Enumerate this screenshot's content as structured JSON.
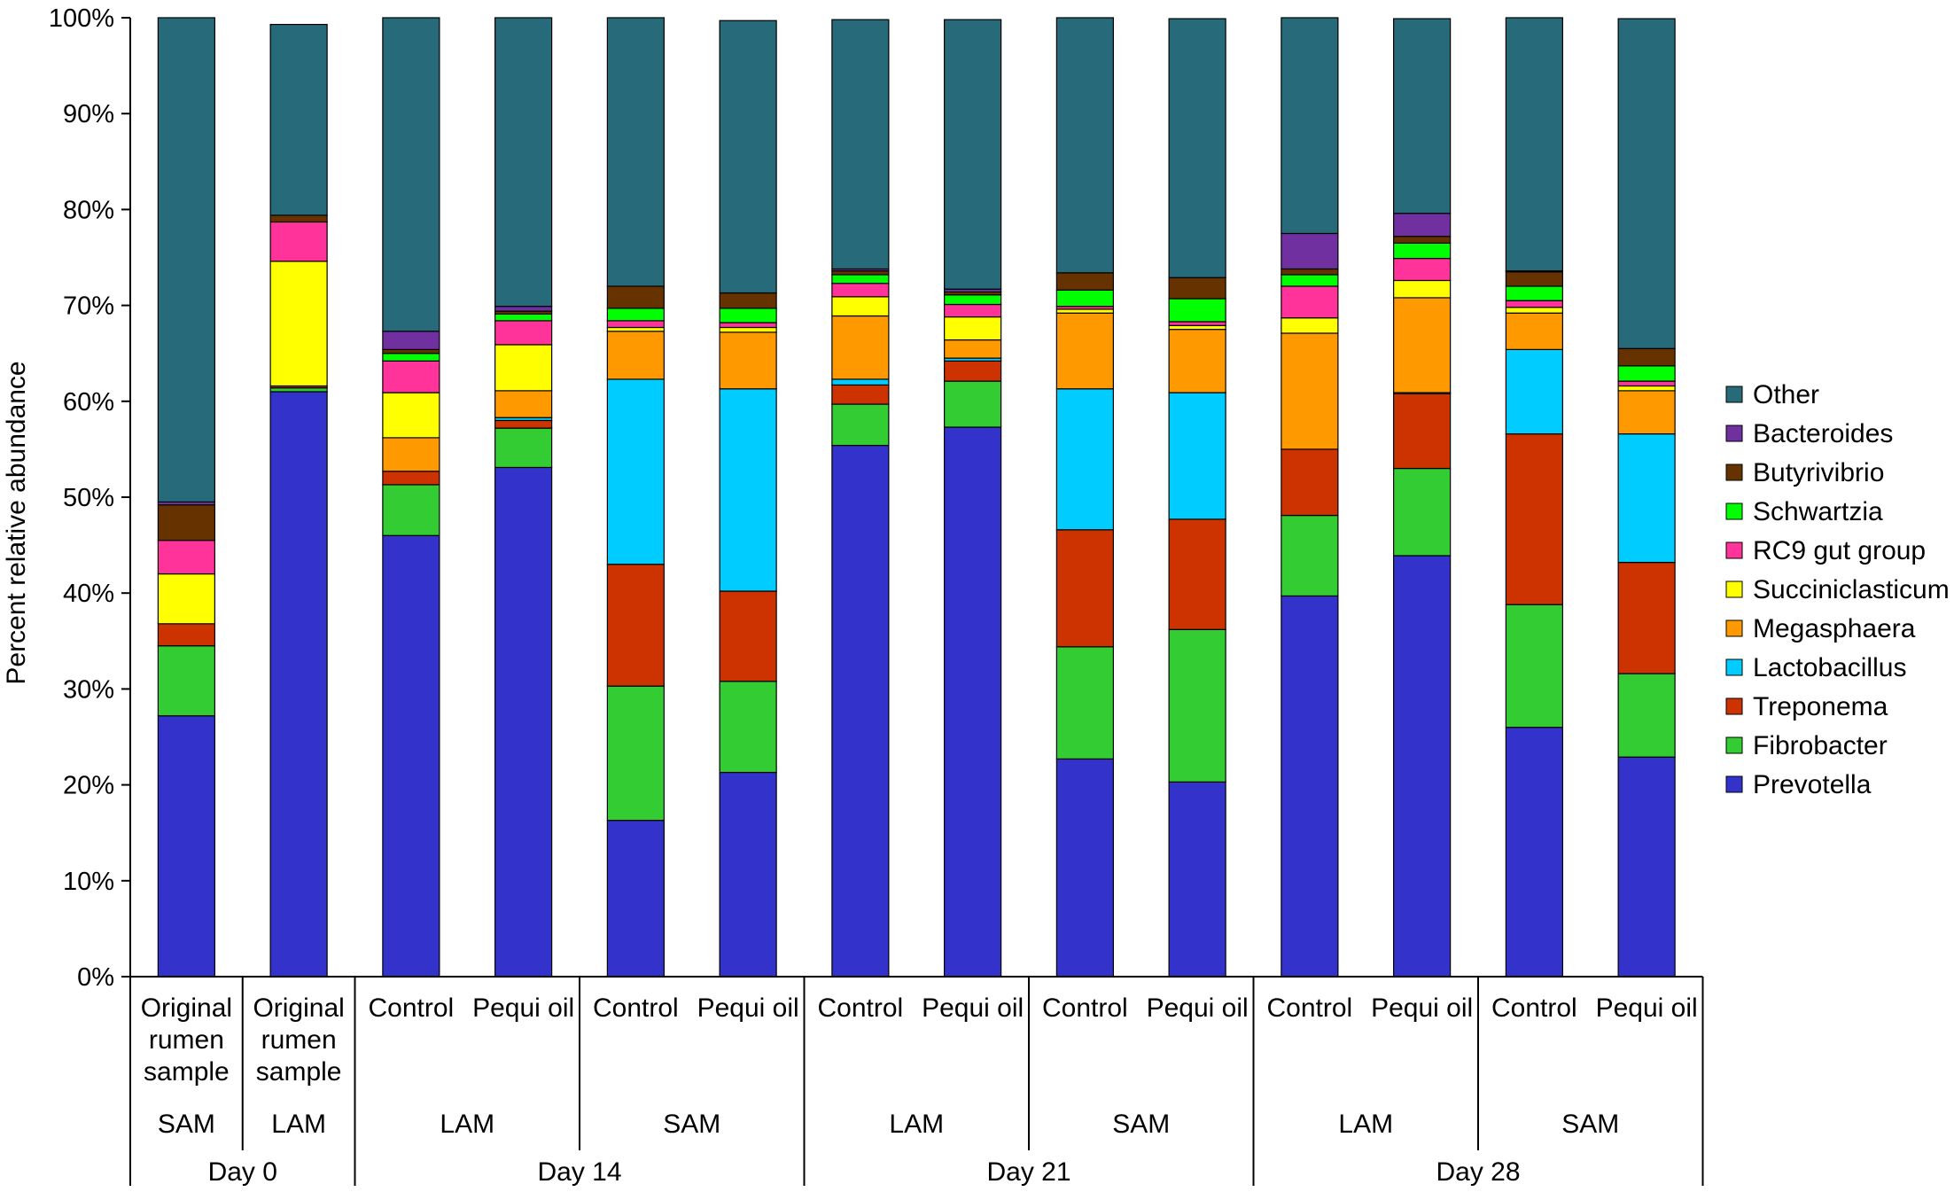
{
  "chart_data": {
    "type": "bar",
    "stacked": true,
    "ylabel": "Percent relative abundance",
    "ylim": [
      0,
      100
    ],
    "yticks": [
      "0%",
      "10%",
      "20%",
      "30%",
      "40%",
      "50%",
      "60%",
      "70%",
      "80%",
      "90%",
      "100%"
    ],
    "legend_position": "right",
    "categories": [
      "Original rumen sample",
      "Original rumen sample",
      "Control",
      "Pequi oil",
      "Control",
      "Pequi oil",
      "Control",
      "Pequi oil",
      "Control",
      "Pequi oil",
      "Control",
      "Pequi oil",
      "Control",
      "Pequi oil"
    ],
    "category_lines": [
      [
        "Original",
        "rumen",
        "sample"
      ],
      [
        "Original",
        "rumen",
        "sample"
      ],
      [
        "Control"
      ],
      [
        "Pequi oil"
      ],
      [
        "Control"
      ],
      [
        "Pequi oil"
      ],
      [
        "Control"
      ],
      [
        "Pequi oil"
      ],
      [
        "Control"
      ],
      [
        "Pequi oil"
      ],
      [
        "Control"
      ],
      [
        "Pequi oil"
      ],
      [
        "Control"
      ],
      [
        "Pequi oil"
      ]
    ],
    "group_level1": [
      {
        "label": "SAM",
        "span": 1
      },
      {
        "label": "LAM",
        "span": 1
      },
      {
        "label": "LAM",
        "span": 2
      },
      {
        "label": "SAM",
        "span": 2
      },
      {
        "label": "LAM",
        "span": 2
      },
      {
        "label": "SAM",
        "span": 2
      },
      {
        "label": "LAM",
        "span": 2
      },
      {
        "label": "SAM",
        "span": 2
      }
    ],
    "group_level2": [
      {
        "label": "Day 0",
        "span": 2
      },
      {
        "label": "Day 14",
        "span": 4
      },
      {
        "label": "Day 21",
        "span": 4
      },
      {
        "label": "Day 28",
        "span": 4
      }
    ],
    "series": [
      {
        "name": "Prevotella",
        "color": "#3333CC",
        "values": [
          27.2,
          61.0,
          46.0,
          53.1,
          16.3,
          21.3,
          55.4,
          57.3,
          22.7,
          20.3,
          39.7,
          43.9,
          26.0,
          22.9
        ]
      },
      {
        "name": "Fibrobacter",
        "color": "#33CC33",
        "values": [
          7.3,
          0.4,
          5.3,
          4.1,
          14.0,
          9.5,
          4.3,
          4.8,
          11.7,
          15.9,
          8.4,
          9.1,
          12.8,
          8.7
        ]
      },
      {
        "name": "Treponema",
        "color": "#CC3300",
        "values": [
          2.3,
          0.2,
          1.4,
          0.8,
          12.7,
          9.4,
          2.0,
          2.1,
          12.2,
          11.5,
          6.9,
          7.8,
          17.8,
          11.6
        ]
      },
      {
        "name": "Lactobacillus",
        "color": "#00CCFF",
        "values": [
          0.0,
          0.0,
          0.0,
          0.3,
          19.3,
          21.1,
          0.6,
          0.3,
          14.7,
          13.2,
          0.0,
          0.1,
          8.8,
          13.4
        ]
      },
      {
        "name": "Megasphaera",
        "color": "#FF9900",
        "values": [
          0.0,
          0.0,
          3.5,
          2.8,
          5.0,
          5.9,
          6.6,
          1.9,
          7.9,
          6.6,
          12.1,
          9.9,
          3.8,
          4.5
        ]
      },
      {
        "name": "Succiniclasticum",
        "color": "#FFFF00",
        "values": [
          5.2,
          13.0,
          4.7,
          4.8,
          0.4,
          0.5,
          2.0,
          2.4,
          0.4,
          0.4,
          1.6,
          1.8,
          0.6,
          0.5
        ]
      },
      {
        "name": "RC9 gut group",
        "color": "#FF3399",
        "values": [
          3.5,
          4.1,
          3.3,
          2.5,
          0.7,
          0.5,
          1.4,
          1.3,
          0.3,
          0.4,
          3.3,
          2.3,
          0.7,
          0.5
        ]
      },
      {
        "name": "Schwartzia",
        "color": "#00FF00",
        "values": [
          0.0,
          0.0,
          0.8,
          0.7,
          1.3,
          1.5,
          0.9,
          1.0,
          1.7,
          2.4,
          1.2,
          1.6,
          1.5,
          1.6
        ]
      },
      {
        "name": "Butyrivibrio",
        "color": "#663300",
        "values": [
          3.7,
          0.7,
          0.4,
          0.3,
          2.3,
          1.6,
          0.4,
          0.3,
          1.8,
          2.2,
          0.6,
          0.7,
          1.5,
          1.8
        ]
      },
      {
        "name": "Bacteroides",
        "color": "#7030A0",
        "values": [
          0.3,
          0.0,
          1.9,
          0.5,
          0.0,
          0.0,
          0.2,
          0.3,
          0.0,
          0.0,
          3.7,
          2.4,
          0.1,
          0.0
        ]
      },
      {
        "name": "Other",
        "color": "#276A7A",
        "values": [
          50.5,
          19.9,
          32.7,
          30.1,
          28.0,
          28.4,
          26.0,
          28.1,
          26.6,
          27.0,
          22.5,
          20.3,
          26.4,
          34.4
        ]
      }
    ],
    "legend_order": [
      "Other",
      "Bacteroides",
      "Butyrivibrio",
      "Schwartzia",
      "RC9 gut group",
      "Succiniclasticum",
      "Megasphaera",
      "Lactobacillus",
      "Treponema",
      "Fibrobacter",
      "Prevotella"
    ]
  }
}
